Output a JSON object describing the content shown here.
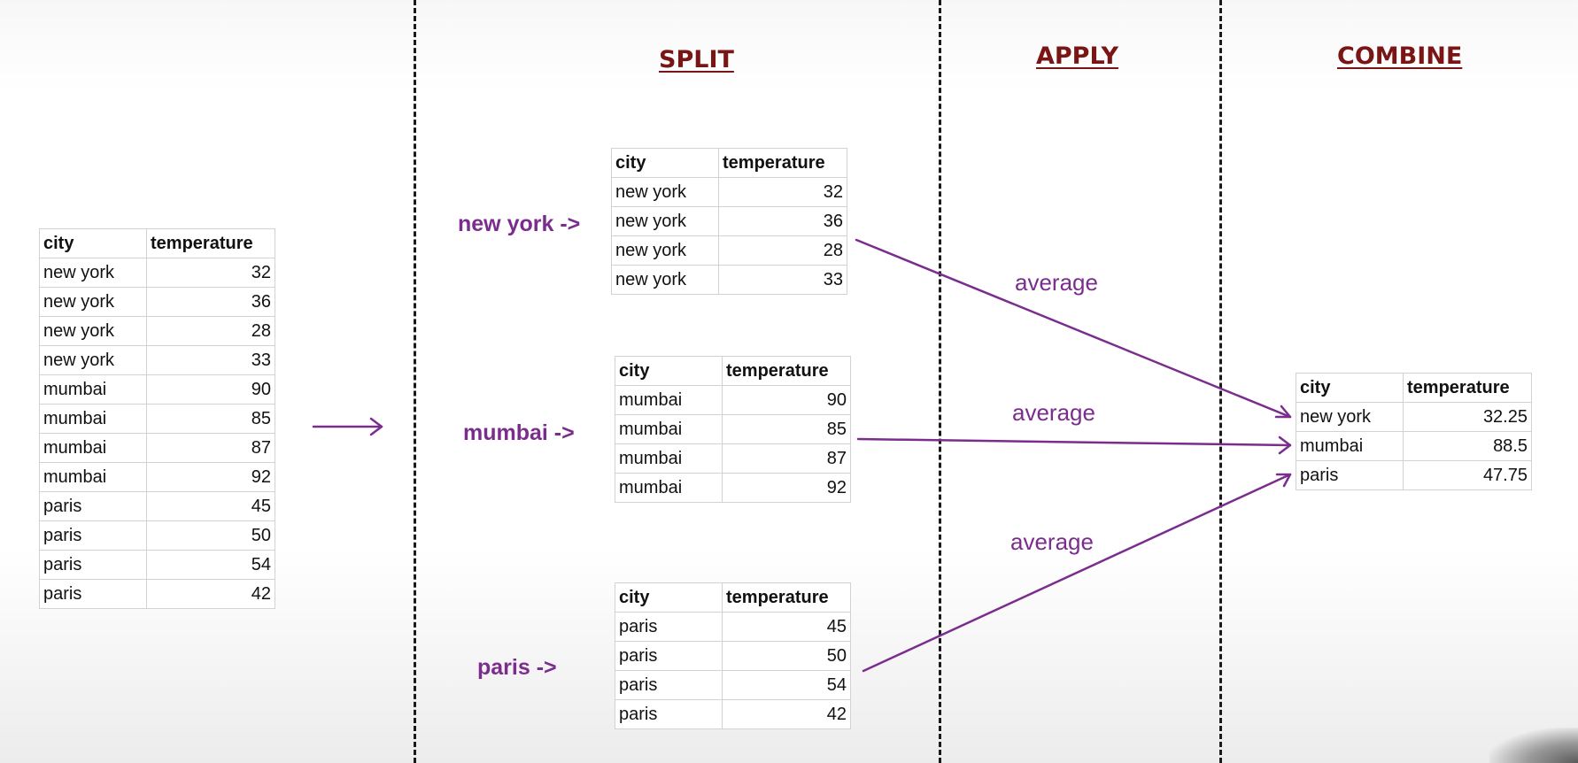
{
  "headings": {
    "split": "SPLIT",
    "apply": "APPLY",
    "combine": "COMBINE"
  },
  "columns": {
    "city": "city",
    "temperature": "temperature"
  },
  "source_table": {
    "rows": [
      [
        "new york",
        "32"
      ],
      [
        "new york",
        "36"
      ],
      [
        "new york",
        "28"
      ],
      [
        "new york",
        "33"
      ],
      [
        "mumbai",
        "90"
      ],
      [
        "mumbai",
        "85"
      ],
      [
        "mumbai",
        "87"
      ],
      [
        "mumbai",
        "92"
      ],
      [
        "paris",
        "45"
      ],
      [
        "paris",
        "50"
      ],
      [
        "paris",
        "54"
      ],
      [
        "paris",
        "42"
      ]
    ]
  },
  "groups": [
    {
      "label": "new york ->",
      "rows": [
        [
          "new york",
          "32"
        ],
        [
          "new york",
          "36"
        ],
        [
          "new york",
          "28"
        ],
        [
          "new york",
          "33"
        ]
      ]
    },
    {
      "label": "mumbai ->",
      "rows": [
        [
          "mumbai",
          "90"
        ],
        [
          "mumbai",
          "85"
        ],
        [
          "mumbai",
          "87"
        ],
        [
          "mumbai",
          "92"
        ]
      ]
    },
    {
      "label": "paris ->",
      "rows": [
        [
          "paris",
          "45"
        ],
        [
          "paris",
          "50"
        ],
        [
          "paris",
          "54"
        ],
        [
          "paris",
          "42"
        ]
      ]
    }
  ],
  "apply_labels": [
    "average",
    "average",
    "average"
  ],
  "result_table": {
    "rows": [
      [
        "new york",
        "32.25"
      ],
      [
        "mumbai",
        "88.5"
      ],
      [
        "paris",
        "47.75"
      ]
    ]
  },
  "colors": {
    "heading": "#7a1515",
    "accent": "#7b2d8e",
    "divider": "#1a1a1a"
  }
}
